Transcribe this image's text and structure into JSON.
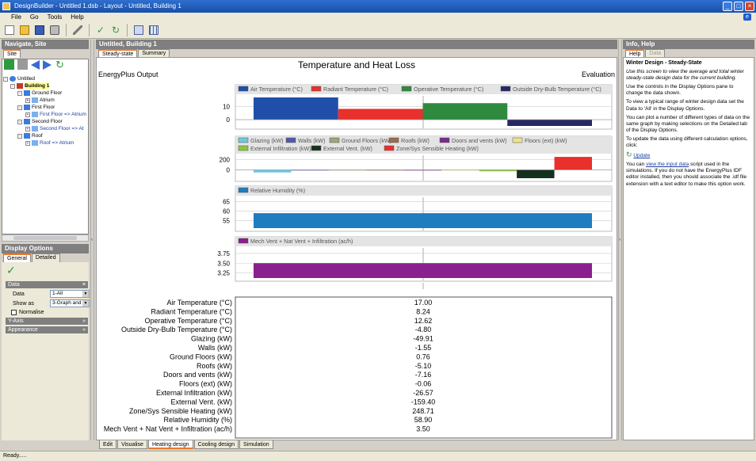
{
  "window": {
    "title": "DesignBuilder - Untitled 1.dsb - Layout - Untitled, Building 1"
  },
  "menu": {
    "items": [
      "File",
      "Go",
      "Tools",
      "Help"
    ]
  },
  "toolbar": {
    "icons": [
      "new-file-icon",
      "open-folder-icon",
      "save-icon",
      "print-icon",
      "wrench-icon",
      "check-icon",
      "refresh-icon",
      "layout-icon",
      "grid-icon"
    ]
  },
  "left_panel": {
    "title": "Navigate, Site",
    "tab": "Site",
    "tree": [
      {
        "label": "Untitled",
        "level": 0
      },
      {
        "label": "Building 1",
        "level": 1
      },
      {
        "label": "Ground Floor",
        "level": 2
      },
      {
        "label": "Atrium",
        "level": 3
      },
      {
        "label": "First Floor",
        "level": 2
      },
      {
        "label": "First Floor => Atrium",
        "level": 3
      },
      {
        "label": "Second Floor",
        "level": 2
      },
      {
        "label": "Second Floor => At",
        "level": 3
      },
      {
        "label": "Roof",
        "level": 2
      },
      {
        "label": "Roof => Atrium",
        "level": 3
      }
    ]
  },
  "display_options": {
    "title": "Display Options",
    "tabs": [
      "General",
      "Detailed"
    ],
    "sections": {
      "data": "Data",
      "y_axis": "Y-Axis",
      "appearance": "Appearance"
    },
    "data_label": "Data",
    "data_value": "1-All",
    "show_as_label": "Show as",
    "show_as_value": "3-Graph and t",
    "normalise_label": "Normalise",
    "normalise_checked": false
  },
  "center": {
    "title": "Untitled, Building 1",
    "tabs": [
      "Steady-state",
      "Summary"
    ],
    "bottom_tabs": [
      "Edit",
      "Visualise",
      "Heating design",
      "Cooling design",
      "Simulation"
    ],
    "active_bottom_tab": "Heating design"
  },
  "chart_data": {
    "type": "bar",
    "title": "Temperature and Heat Loss",
    "left_caption": "EnergyPlus Output",
    "right_caption": "Evaluation",
    "panels": [
      {
        "ytick_labels": [
          "10",
          "0"
        ],
        "ylim": [
          -4.8,
          17
        ],
        "series": [
          {
            "name": "Air Temperature (°C)",
            "value": 17.0,
            "color": "#1f4fa8"
          },
          {
            "name": "Radiant Temperature (°C)",
            "value": 8.24,
            "color": "#e8302c"
          },
          {
            "name": "Operative Temperature (°C)",
            "value": 12.62,
            "color": "#2e8a3e"
          },
          {
            "name": "Outside Dry-Bulb Temperature (°C)",
            "value": -4.8,
            "color": "#262763"
          }
        ]
      },
      {
        "ytick_labels": [
          "200",
          "0"
        ],
        "ylim": [
          -160,
          250
        ],
        "series": [
          {
            "name": "Glazing (kW)",
            "value": -49.91,
            "color": "#6fc8e0"
          },
          {
            "name": "Walls (kW)",
            "value": -1.55,
            "color": "#505aa8"
          },
          {
            "name": "Ground Floors (kW)",
            "value": 0.76,
            "color": "#9aa87a"
          },
          {
            "name": "Roofs (kW)",
            "value": -5.1,
            "color": "#9b6d4a"
          },
          {
            "name": "Doors and vents (kW)",
            "value": -7.16,
            "color": "#7a2a8a"
          },
          {
            "name": "Floors (ext) (kW)",
            "value": -0.06,
            "color": "#ece48a"
          },
          {
            "name": "External Infiltration (kW)",
            "value": -26.57,
            "color": "#8cc63f"
          },
          {
            "name": "External Vent. (kW)",
            "value": -159.4,
            "color": "#15301e"
          },
          {
            "name": "Zone/Sys Sensible Heating (kW)",
            "value": 248.71,
            "color": "#e8302c"
          }
        ]
      },
      {
        "ytick_labels": [
          "65",
          "60",
          "55"
        ],
        "ylim": [
          51,
          66.5
        ],
        "series": [
          {
            "name": "Relative Humidity (%)",
            "value": 58.9,
            "color": "#1f7dbf"
          }
        ]
      },
      {
        "ytick_labels": [
          "3.75",
          "3.50",
          "3.25"
        ],
        "ylim": [
          3.12,
          3.85
        ],
        "series": [
          {
            "name": "Mech Vent + Nat Vent + Infiltration (ac/h)",
            "value": 3.5,
            "color": "#8a1f8e"
          }
        ]
      }
    ],
    "table": {
      "rows": [
        {
          "label": "Air Temperature (°C)",
          "value": "17.00"
        },
        {
          "label": "Radiant Temperature (°C)",
          "value": "8.24"
        },
        {
          "label": "Operative Temperature (°C)",
          "value": "12.62"
        },
        {
          "label": "Outside Dry-Bulb Temperature (°C)",
          "value": "-4.80"
        },
        {
          "label": "Glazing (kW)",
          "value": "-49.91"
        },
        {
          "label": "Walls (kW)",
          "value": "-1.55"
        },
        {
          "label": "Ground Floors (kW)",
          "value": "0.76"
        },
        {
          "label": "Roofs (kW)",
          "value": "-5.10"
        },
        {
          "label": "Doors and vents (kW)",
          "value": "-7.16"
        },
        {
          "label": "Floors (ext) (kW)",
          "value": "-0.06"
        },
        {
          "label": "External Infiltration (kW)",
          "value": "-26.57"
        },
        {
          "label": "External Vent. (kW)",
          "value": "-159.40"
        },
        {
          "label": "Zone/Sys Sensible Heating (kW)",
          "value": "248.71"
        },
        {
          "label": "Relative Humidity (%)",
          "value": "58.90"
        },
        {
          "label": "Mech Vent + Nat Vent + Infiltration (ac/h)",
          "value": "3.50"
        }
      ]
    }
  },
  "right_panel": {
    "title": "Info, Help",
    "tabs": [
      "Help",
      "Data"
    ],
    "heading": "Winter Design - Steady-State",
    "intro": "Use this screen to view the average and total winter steady-state design data for the current building.",
    "p1": "Use the controls in the Display Options pane to change the data shown.",
    "p2": "To view a typical range of winter design data set the Data to 'All' in the Display Options.",
    "p3": "You can plot a number of different types of data on the same graph by making selections on the Detailed tab of the Display Options.",
    "p4": "To update the data using different calculation options, click:",
    "update_link": "Update",
    "p5_pre": "You can ",
    "p5_link": "view the input data",
    "p5_post": " script used in the simulations.  If you do not have the EnergyPlus IDF editor installed, then you should associate the .idf file extension with a text editor to make this option work."
  },
  "status": {
    "text": "Ready....."
  }
}
